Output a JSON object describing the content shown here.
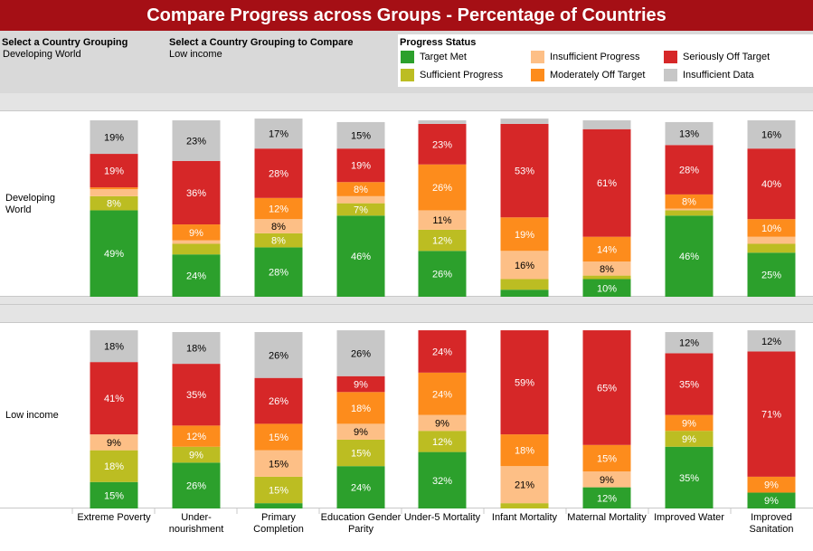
{
  "title": "Compare Progress across Groups - Percentage of Countries",
  "controls": {
    "grouping_label": "Select a Country Grouping",
    "grouping_value": "Developing World",
    "compare_label": "Select a Country Grouping to Compare",
    "compare_value": "Low income"
  },
  "legend": {
    "title": "Progress Status",
    "items": [
      {
        "key": "target_met",
        "label": "Target Met",
        "color": "#2ca02c"
      },
      {
        "key": "sufficient",
        "label": "Sufficient Progress",
        "color": "#bcbd22"
      },
      {
        "key": "insufficient",
        "label": "Insufficient Progress",
        "color": "#fdbf86"
      },
      {
        "key": "moderately_off",
        "label": "Moderately Off Target",
        "color": "#fd8c1c"
      },
      {
        "key": "seriously_off",
        "label": "Seriously Off Target",
        "color": "#d62728"
      },
      {
        "key": "insufficient_data",
        "label": "Insufficient Data",
        "color": "#c7c7c7"
      }
    ]
  },
  "chart_data": {
    "type": "bar",
    "stacked": true,
    "normalized_to": 100,
    "categories": [
      "Extreme Poverty",
      "Under-\nnourishment",
      "Primary\nCompletion",
      "Education Gender\nParity",
      "Under-5 Mortality",
      "Infant Mortality",
      "Maternal Mortality",
      "Improved Water",
      "Improved\nSanitation"
    ],
    "stack_order": [
      "target_met",
      "sufficient",
      "insufficient",
      "moderately_off",
      "seriously_off",
      "insufficient_data"
    ],
    "groups": [
      {
        "name": "Developing\nWorld",
        "series": {
          "target_met": [
            49,
            24,
            28,
            46,
            26,
            4,
            10,
            46,
            25
          ],
          "sufficient": [
            8,
            6,
            8,
            7,
            12,
            6,
            2,
            3,
            5
          ],
          "insufficient": [
            4,
            2,
            8,
            4,
            11,
            16,
            8,
            1,
            4
          ],
          "moderately_off": [
            1,
            9,
            12,
            8,
            26,
            19,
            14,
            8,
            10
          ],
          "seriously_off": [
            19,
            36,
            28,
            19,
            23,
            53,
            61,
            28,
            40
          ],
          "insufficient_data": [
            19,
            23,
            17,
            15,
            2,
            3,
            5,
            13,
            16
          ]
        },
        "labels": {
          "target_met": [
            "49%",
            "24%",
            "28%",
            "46%",
            "26%",
            "",
            "10%",
            "46%",
            "25%"
          ],
          "sufficient": [
            "8%",
            "",
            "8%",
            "7%",
            "12%",
            "",
            "",
            "",
            ""
          ],
          "insufficient": [
            "",
            "",
            "8%",
            "",
            "11%",
            "16%",
            "8%",
            "",
            ""
          ],
          "moderately_off": [
            "",
            "9%",
            "12%",
            "8%",
            "26%",
            "19%",
            "14%",
            "8%",
            "10%"
          ],
          "seriously_off": [
            "19%",
            "36%",
            "28%",
            "19%",
            "23%",
            "53%",
            "61%",
            "28%",
            "40%"
          ],
          "insufficient_data": [
            "19%",
            "23%",
            "17%",
            "15%",
            "",
            "",
            "",
            "13%",
            "16%"
          ]
        }
      },
      {
        "name": "Low income",
        "series": {
          "target_met": [
            15,
            26,
            3,
            24,
            32,
            0,
            12,
            35,
            9
          ],
          "sufficient": [
            18,
            9,
            15,
            15,
            12,
            3,
            0,
            9,
            0
          ],
          "insufficient": [
            9,
            0,
            15,
            9,
            9,
            21,
            9,
            0,
            0
          ],
          "moderately_off": [
            0,
            12,
            15,
            18,
            24,
            18,
            15,
            9,
            9
          ],
          "seriously_off": [
            41,
            35,
            26,
            9,
            24,
            59,
            65,
            35,
            71
          ],
          "insufficient_data": [
            18,
            18,
            26,
            26,
            0,
            0,
            0,
            12,
            12
          ]
        },
        "labels": {
          "target_met": [
            "15%",
            "26%",
            "",
            "24%",
            "32%",
            "",
            "12%",
            "35%",
            "9%"
          ],
          "sufficient": [
            "18%",
            "9%",
            "15%",
            "15%",
            "12%",
            "",
            "",
            "9%",
            ""
          ],
          "insufficient": [
            "9%",
            "",
            "15%",
            "9%",
            "9%",
            "21%",
            "9%",
            "",
            ""
          ],
          "moderately_off": [
            "",
            "12%",
            "15%",
            "18%",
            "24%",
            "18%",
            "15%",
            "9%",
            "9%"
          ],
          "seriously_off": [
            "41%",
            "35%",
            "26%",
            "9%",
            "24%",
            "59%",
            "65%",
            "35%",
            "71%"
          ],
          "insufficient_data": [
            "18%",
            "18%",
            "26%",
            "26%",
            "",
            "",
            "",
            "12%",
            "12%"
          ]
        }
      }
    ],
    "ylim": [
      0,
      100
    ],
    "xlabel": "",
    "ylabel": ""
  }
}
